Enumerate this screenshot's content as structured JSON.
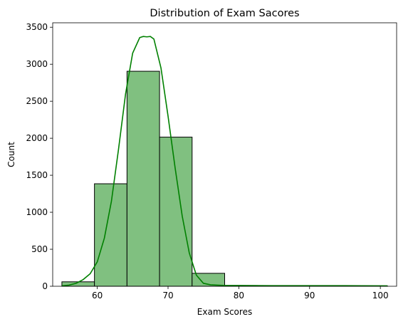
{
  "chart_data": {
    "type": "bar",
    "title": "Distribution of Exam Sacores",
    "xlabel": "Exam Scores",
    "ylabel": "Count",
    "xlim": [
      53.7,
      102.3
    ],
    "ylim": [
      0,
      3560
    ],
    "grid": false,
    "xticks": [
      60,
      70,
      80,
      90,
      100
    ],
    "yticks": [
      0,
      500,
      1000,
      1500,
      2000,
      2500,
      3000,
      3500
    ],
    "bar_color": "#80c080",
    "bar_edge_color": "#000000",
    "kde_color": "#008000",
    "bins": [
      {
        "x0": 55.0,
        "x1": 59.6,
        "count": 60
      },
      {
        "x0": 59.6,
        "x1": 64.2,
        "count": 1385
      },
      {
        "x0": 64.2,
        "x1": 68.8,
        "count": 2905
      },
      {
        "x0": 68.8,
        "x1": 73.4,
        "count": 2015
      },
      {
        "x0": 73.4,
        "x1": 78.0,
        "count": 175
      },
      {
        "x0": 78.0,
        "x1": 82.6,
        "count": 10
      },
      {
        "x0": 82.6,
        "x1": 87.2,
        "count": 5
      },
      {
        "x0": 87.2,
        "x1": 91.8,
        "count": 5
      },
      {
        "x0": 91.8,
        "x1": 96.4,
        "count": 5
      },
      {
        "x0": 96.4,
        "x1": 101.0,
        "count": 5
      }
    ],
    "kde": {
      "x": [
        55,
        56,
        57,
        58,
        59,
        60,
        61,
        62,
        63,
        64,
        65,
        66,
        66.5,
        67,
        67.5,
        68,
        69,
        70,
        71,
        72,
        73,
        74,
        75,
        76,
        77,
        78,
        80,
        85,
        90,
        95,
        101
      ],
      "y": [
        5,
        15,
        40,
        90,
        170,
        330,
        650,
        1150,
        1850,
        2600,
        3150,
        3360,
        3375,
        3370,
        3375,
        3340,
        2950,
        2300,
        1600,
        950,
        450,
        150,
        40,
        20,
        15,
        10,
        10,
        8,
        8,
        8,
        6
      ]
    }
  }
}
